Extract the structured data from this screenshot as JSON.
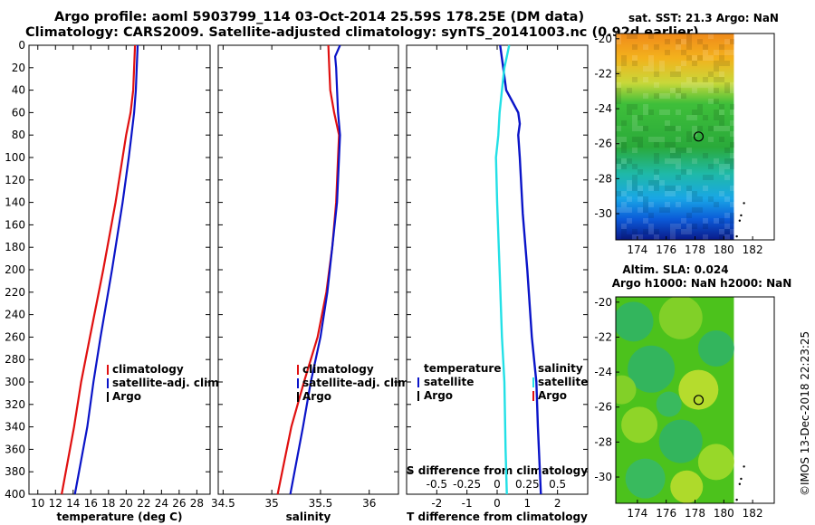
{
  "header": {
    "title_line1": "Argo profile: aoml 5903799_114 03-Oct-2014 25.59S 178.25E (DM data)",
    "title_line2": "Climatology: CARS2009. Satellite-adjusted climatology: synTS_20141003.nc (0.92d earlier)"
  },
  "footer": {
    "credit": "©IMOS 13-Dec-2018 22:23:25"
  },
  "colors": {
    "climatology": "#e01010",
    "satellite": "#0a14c8",
    "argo": "#000000",
    "t_diff": "#0a14c8",
    "s_diff": "#22e0e6"
  },
  "chart_data": [
    {
      "type": "line",
      "name": "temperature-profile",
      "xlabel": "temperature (deg C)",
      "ylabel": "",
      "xlim": [
        9,
        29.5
      ],
      "ylim": [
        400,
        0
      ],
      "xticks": [
        10,
        12,
        14,
        16,
        18,
        20,
        22,
        24,
        26,
        28
      ],
      "yticks": [
        0,
        20,
        40,
        60,
        80,
        100,
        120,
        140,
        160,
        180,
        200,
        220,
        240,
        260,
        280,
        300,
        320,
        340,
        360,
        380,
        400
      ],
      "legend": [
        "climatology",
        "satellite-adj. clim.",
        "Argo"
      ],
      "series": [
        {
          "name": "climatology",
          "depth": [
            0,
            20,
            40,
            60,
            80,
            100,
            140,
            200,
            260,
            300,
            340,
            400
          ],
          "values": [
            21.0,
            20.9,
            20.8,
            20.5,
            20.0,
            19.6,
            18.8,
            17.4,
            15.9,
            14.9,
            14.1,
            12.7
          ]
        },
        {
          "name": "satellite-adj. clim.",
          "depth": [
            0,
            20,
            40,
            60,
            80,
            100,
            140,
            200,
            260,
            300,
            340,
            400
          ],
          "values": [
            21.3,
            21.2,
            21.1,
            20.9,
            20.6,
            20.3,
            19.6,
            18.4,
            17.1,
            16.3,
            15.6,
            14.2
          ]
        },
        {
          "name": "Argo",
          "depth": [],
          "values": []
        }
      ]
    },
    {
      "type": "line",
      "name": "salinity-profile",
      "xlabel": "salinity",
      "ylabel": "",
      "xlim": [
        34.45,
        36.3
      ],
      "ylim": [
        400,
        0
      ],
      "xticks": [
        34.5,
        35,
        35.5,
        36
      ],
      "xticklabels": [
        "34.5",
        "35",
        "35.5",
        "36"
      ],
      "legend": [
        "climatology",
        "satellite-adj. clim.",
        "Argo"
      ],
      "series": [
        {
          "name": "climatology",
          "depth": [
            0,
            20,
            40,
            60,
            80,
            100,
            140,
            180,
            220,
            260,
            300,
            340,
            400
          ],
          "values": [
            35.58,
            35.59,
            35.6,
            35.64,
            35.69,
            35.68,
            35.66,
            35.62,
            35.56,
            35.47,
            35.33,
            35.2,
            35.06
          ]
        },
        {
          "name": "satellite-adj. clim.",
          "depth": [
            0,
            10,
            20,
            40,
            60,
            80,
            100,
            140,
            180,
            220,
            260,
            300,
            340,
            400
          ],
          "values": [
            35.7,
            35.65,
            35.66,
            35.67,
            35.68,
            35.7,
            35.69,
            35.67,
            35.62,
            35.57,
            35.5,
            35.4,
            35.32,
            35.19
          ]
        },
        {
          "name": "Argo",
          "depth": [],
          "values": []
        }
      ]
    },
    {
      "type": "line",
      "name": "difference-profile",
      "xlabel": "T difference from climatology",
      "top_axis_label": "S difference from climatology",
      "xlim": [
        -3,
        3
      ],
      "ylim": [
        400,
        0
      ],
      "xticks": [
        -2,
        -1,
        0,
        1,
        2
      ],
      "top_ticks": [
        -0.5,
        -0.25,
        0,
        0.25,
        0.5
      ],
      "top_ticklabels": [
        "-0.5",
        "-0.25",
        "0",
        "0.25",
        "0.5"
      ],
      "legend_left_title": "temperature",
      "legend_right_title": "salinity",
      "legend_left": [
        "satellite",
        "Argo"
      ],
      "legend_right": [
        "satellite",
        "Argo"
      ],
      "series": [
        {
          "name": "T satellite",
          "depth": [
            0,
            20,
            40,
            50,
            60,
            70,
            80,
            100,
            150,
            200,
            260,
            300,
            340,
            400
          ],
          "values": [
            0.1,
            0.2,
            0.3,
            0.5,
            0.7,
            0.75,
            0.7,
            0.75,
            0.85,
            1.0,
            1.15,
            1.3,
            1.35,
            1.45
          ]
        },
        {
          "name": "S satellite",
          "depth": [
            0,
            10,
            20,
            40,
            60,
            80,
            100,
            140,
            200,
            260,
            300,
            360,
            400
          ],
          "values": [
            0.1,
            0.08,
            0.06,
            0.04,
            0.02,
            0.01,
            -0.01,
            0.0,
            0.02,
            0.04,
            0.06,
            0.07,
            0.08
          ]
        },
        {
          "name": "T Argo",
          "depth": [],
          "values": []
        },
        {
          "name": "S Argo",
          "depth": [],
          "values": []
        }
      ]
    },
    {
      "type": "heatmap",
      "name": "sst-map",
      "title": "sat. SST: 21.3 Argo: NaN",
      "xlim": [
        172.5,
        183.5
      ],
      "ylim": [
        -31.5,
        -19.7
      ],
      "xticks": [
        174,
        176,
        178,
        180,
        182
      ],
      "yticks": [
        -20,
        -22,
        -24,
        -26,
        -28,
        -30
      ],
      "marker": {
        "lon": 178.25,
        "lat": -25.59
      }
    },
    {
      "type": "heatmap",
      "name": "sla-map",
      "title_line1": "Altim. SLA: 0.024",
      "title_line2": "Argo h1000: NaN h2000: NaN",
      "xlim": [
        172.5,
        183.5
      ],
      "ylim": [
        -31.5,
        -19.7
      ],
      "xticks": [
        174,
        176,
        178,
        180,
        182
      ],
      "yticks": [
        -20,
        -22,
        -24,
        -26,
        -28,
        -30
      ],
      "marker": {
        "lon": 178.25,
        "lat": -25.59
      }
    }
  ]
}
